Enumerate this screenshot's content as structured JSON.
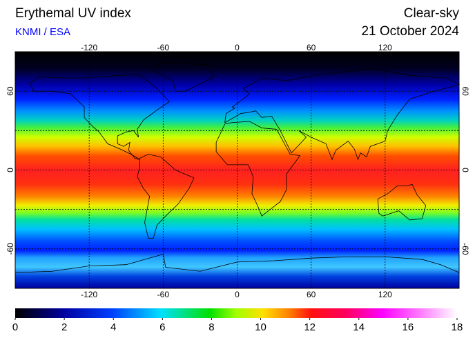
{
  "header": {
    "title": "Erythemal UV index",
    "credit": "KNMI / ESA",
    "condition": "Clear-sky",
    "date": "21 October 2024"
  },
  "map": {
    "lon_range": [
      -180,
      180
    ],
    "lat_range": [
      -90,
      90
    ],
    "lon_ticks": [
      -120,
      -60,
      0,
      60,
      120
    ],
    "lat_ticks": [
      60,
      0,
      -60
    ]
  },
  "colorbar": {
    "range": [
      0,
      18
    ],
    "ticks": [
      0,
      2,
      4,
      6,
      8,
      10,
      12,
      14,
      16,
      18
    ]
  }
}
